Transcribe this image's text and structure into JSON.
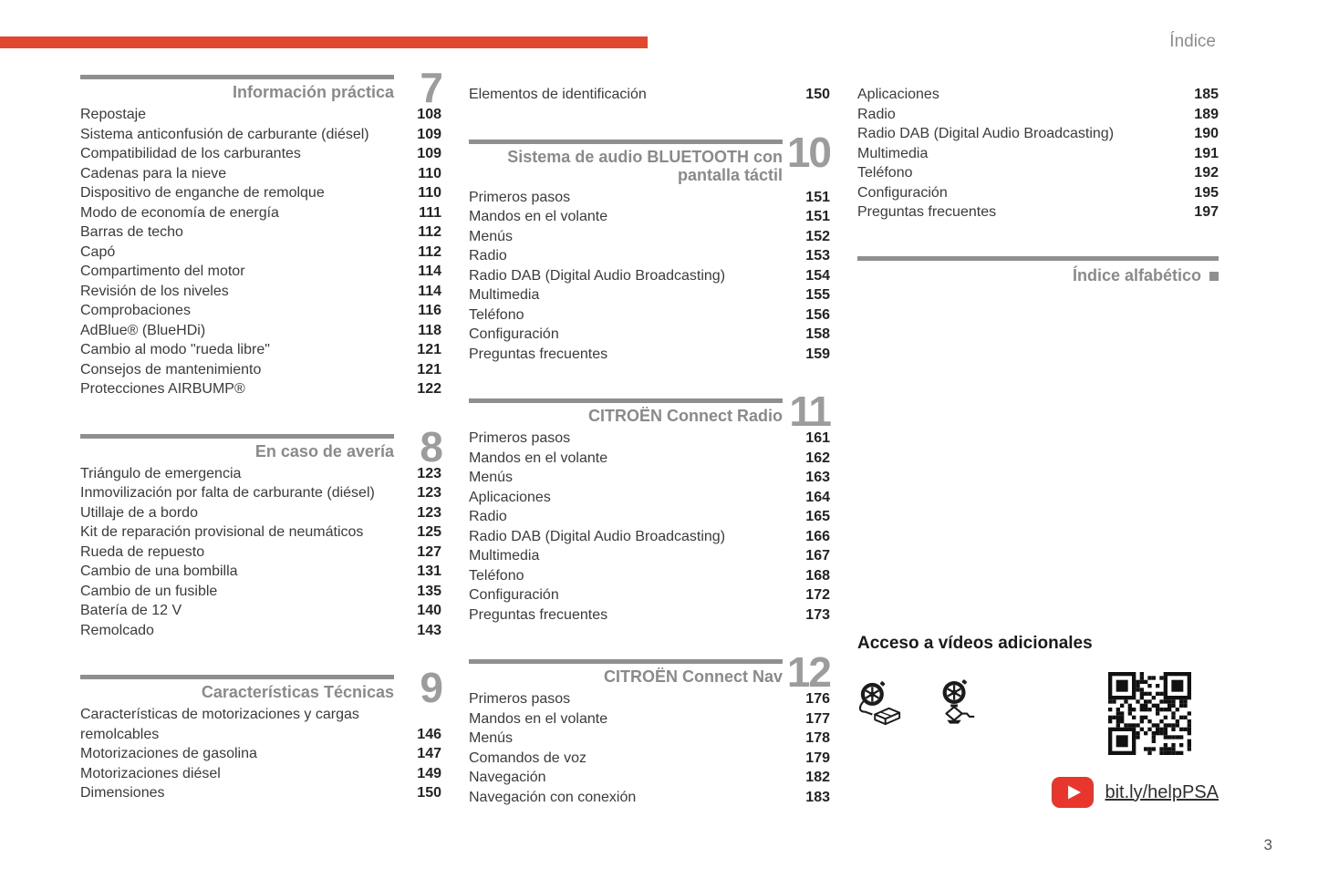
{
  "page": {
    "header_label": "Índice",
    "page_number": "3"
  },
  "colors": {
    "accent": "#E0492F",
    "rule_gray": "#8F8F8F",
    "youtube_red": "#E8362D"
  },
  "columns": [
    [
      {
        "type": "section_header",
        "number": "7",
        "title_lines": [
          "Información práctica"
        ]
      },
      {
        "type": "items",
        "rows": [
          {
            "label": "Repostaje",
            "page": "108"
          },
          {
            "label": "Sistema anticonfusión de carburante (diésel)",
            "page": "109"
          },
          {
            "label": "Compatibilidad de los carburantes",
            "page": "109"
          },
          {
            "label": "Cadenas para la nieve",
            "page": "110"
          },
          {
            "label": "Dispositivo de enganche de remolque",
            "page": "110"
          },
          {
            "label": "Modo de economía de energía",
            "page": "111"
          },
          {
            "label": "Barras de techo",
            "page": "112"
          },
          {
            "label": "Capó",
            "page": "112"
          },
          {
            "label": "Compartimento del motor",
            "page": "114"
          },
          {
            "label": "Revisión de los niveles",
            "page": "114"
          },
          {
            "label": "Comprobaciones",
            "page": "116"
          },
          {
            "label": "AdBlue® (BlueHDi)",
            "page": "118"
          },
          {
            "label": "Cambio al modo \"rueda libre\"",
            "page": "121"
          },
          {
            "label": "Consejos de mantenimiento",
            "page": "121"
          },
          {
            "label": "Protecciones AIRBUMP®",
            "page": "122"
          }
        ]
      },
      {
        "type": "section_header",
        "number": "8",
        "title_lines": [
          "En caso de avería"
        ]
      },
      {
        "type": "items",
        "rows": [
          {
            "label": "Triángulo de emergencia",
            "page": "123"
          },
          {
            "label": "Inmovilización por falta de carburante (diésel)",
            "page": "123"
          },
          {
            "label": "Utillaje de a bordo",
            "page": "123"
          },
          {
            "label": "Kit de reparación provisional de neumáticos",
            "page": "125"
          },
          {
            "label": "Rueda de repuesto",
            "page": "127"
          },
          {
            "label": "Cambio de una bombilla",
            "page": "131"
          },
          {
            "label": "Cambio de un fusible",
            "page": "135"
          },
          {
            "label": "Batería de 12 V",
            "page": "140"
          },
          {
            "label": "Remolcado",
            "page": "143"
          }
        ]
      },
      {
        "type": "section_header",
        "number": "9",
        "title_lines": [
          "Características Técnicas"
        ]
      },
      {
        "type": "items",
        "rows": [
          {
            "label": "Características de motorizaciones y cargas",
            "page": ""
          },
          {
            "label": "remolcables",
            "page": "146"
          },
          {
            "label": "Motorizaciones de gasolina",
            "page": "147"
          },
          {
            "label": "Motorizaciones diésel",
            "page": "149"
          },
          {
            "label": "Dimensiones",
            "page": "150"
          }
        ]
      }
    ],
    [
      {
        "type": "items",
        "rows": [
          {
            "label": "Elementos de identificación",
            "page": "150"
          }
        ]
      },
      {
        "type": "section_header",
        "number": "10",
        "title_lines": [
          "Sistema de audio BLUETOOTH con",
          "pantalla táctil"
        ]
      },
      {
        "type": "items",
        "rows": [
          {
            "label": "Primeros pasos",
            "page": "151"
          },
          {
            "label": "Mandos en el volante",
            "page": "151"
          },
          {
            "label": "Menús",
            "page": "152"
          },
          {
            "label": "Radio",
            "page": "153"
          },
          {
            "label": "Radio DAB (Digital Audio Broadcasting)",
            "page": "154"
          },
          {
            "label": "Multimedia",
            "page": "155"
          },
          {
            "label": "Teléfono",
            "page": "156"
          },
          {
            "label": "Configuración",
            "page": "158"
          },
          {
            "label": "Preguntas frecuentes",
            "page": "159"
          }
        ]
      },
      {
        "type": "section_header",
        "number": "11",
        "title_lines": [
          "CITROËN Connect Radio"
        ]
      },
      {
        "type": "items",
        "rows": [
          {
            "label": "Primeros pasos",
            "page": "161"
          },
          {
            "label": "Mandos en el volante",
            "page": "162"
          },
          {
            "label": "Menús",
            "page": "163"
          },
          {
            "label": "Aplicaciones",
            "page": "164"
          },
          {
            "label": "Radio",
            "page": "165"
          },
          {
            "label": "Radio DAB (Digital Audio Broadcasting)",
            "page": "166"
          },
          {
            "label": "Multimedia",
            "page": "167"
          },
          {
            "label": "Teléfono",
            "page": "168"
          },
          {
            "label": "Configuración",
            "page": "172"
          },
          {
            "label": "Preguntas frecuentes",
            "page": "173"
          }
        ]
      },
      {
        "type": "section_header",
        "number": "12",
        "title_lines": [
          "CITROËN Connect Nav"
        ]
      },
      {
        "type": "items",
        "rows": [
          {
            "label": "Primeros pasos",
            "page": "176"
          },
          {
            "label": "Mandos en el volante",
            "page": "177"
          },
          {
            "label": "Menús",
            "page": "178"
          },
          {
            "label": "Comandos de voz",
            "page": "179"
          },
          {
            "label": "Navegación",
            "page": "182"
          },
          {
            "label": "Navegación con conexión",
            "page": "183"
          }
        ]
      }
    ],
    [
      {
        "type": "items",
        "rows": [
          {
            "label": "Aplicaciones",
            "page": "185"
          },
          {
            "label": "Radio",
            "page": "189"
          },
          {
            "label": "Radio DAB (Digital Audio Broadcasting)",
            "page": "190"
          },
          {
            "label": "Multimedia",
            "page": "191"
          },
          {
            "label": "Teléfono",
            "page": "192"
          },
          {
            "label": "Configuración",
            "page": "195"
          },
          {
            "label": "Preguntas frecuentes",
            "page": "197"
          }
        ]
      },
      {
        "type": "index_header",
        "title": "Índice alfabético"
      },
      {
        "type": "videos",
        "heading": "Acceso a vídeos adicionales",
        "icons": [
          "tire-repair-kit-icon",
          "car-jack-icon"
        ],
        "qr": "qr-code",
        "youtube": "youtube-play-icon",
        "link": "bit.ly/helpPSA"
      }
    ]
  ]
}
